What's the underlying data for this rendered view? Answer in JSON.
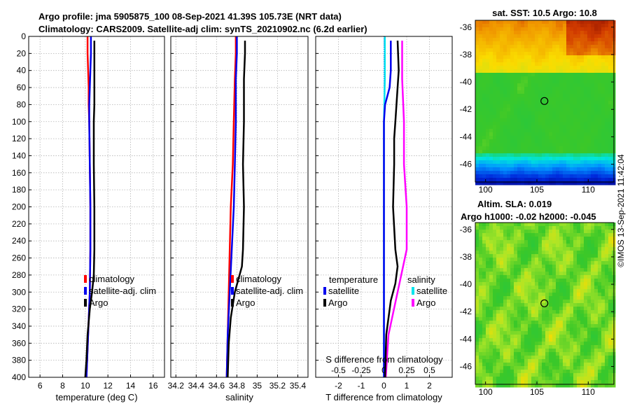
{
  "title": {
    "line1": "Argo profile: jma 5905875_100 08-Sep-2021 41.39S 105.73E (NRT data)",
    "line2": "Climatology: CARS2009. Satellite-adj clim: synTS_20210902.nc (6.2d earlier)"
  },
  "copyright": "©IMOS 13-Sep-2021 11:42:04",
  "colors": {
    "climatology": "#ff0000",
    "satellite_adj": "#0000ee",
    "argo": "#000000",
    "s_satellite": "#00e5ee",
    "s_argo": "#ff00ff",
    "zero_line": "#0000ff",
    "grid": "#b4b4b4"
  },
  "chart_data": [
    {
      "id": "temperature",
      "type": "line",
      "xlabel": "temperature (deg C)",
      "ylabel": "",
      "xlim": [
        5,
        17
      ],
      "ylim": [
        400,
        0
      ],
      "xticks": [
        6,
        8,
        10,
        12,
        14,
        16
      ],
      "yticks": [
        0,
        20,
        40,
        60,
        80,
        100,
        120,
        140,
        160,
        180,
        200,
        220,
        240,
        260,
        280,
        300,
        320,
        340,
        360,
        380,
        400
      ],
      "grid": true,
      "legend": [
        "climatology",
        "satellite-adj. clim",
        "Argo"
      ],
      "series": [
        {
          "name": "climatology",
          "depth": [
            0,
            20,
            40,
            60,
            80,
            100,
            150,
            200,
            250,
            300,
            350,
            400
          ],
          "values": [
            10.2,
            10.2,
            10.25,
            10.3,
            10.3,
            10.35,
            10.4,
            10.45,
            10.45,
            10.4,
            10.25,
            10.1
          ]
        },
        {
          "name": "satellite-adj. clim",
          "depth": [
            0,
            20,
            40,
            60,
            80,
            100,
            150,
            200,
            250,
            300,
            350,
            400
          ],
          "values": [
            10.5,
            10.5,
            10.45,
            10.4,
            10.35,
            10.35,
            10.4,
            10.45,
            10.45,
            10.4,
            10.25,
            10.1
          ]
        },
        {
          "name": "Argo",
          "depth": [
            5,
            20,
            40,
            60,
            80,
            100,
            150,
            200,
            250,
            280,
            300,
            320,
            350,
            380,
            400
          ],
          "values": [
            10.8,
            10.8,
            10.8,
            10.8,
            10.8,
            10.75,
            10.75,
            10.8,
            10.8,
            10.75,
            10.6,
            10.4,
            10.2,
            10.1,
            10.0
          ]
        }
      ]
    },
    {
      "id": "salinity",
      "type": "line",
      "xlabel": "salinity",
      "ylabel": "",
      "xlim": [
        34.15,
        35.5
      ],
      "ylim": [
        400,
        0
      ],
      "xticks": [
        34.2,
        34.4,
        34.6,
        34.8,
        35,
        35.2,
        35.4
      ],
      "xticklabels": [
        "34.2",
        "34.4",
        "34.6",
        "34.8",
        "35",
        "35.2",
        "35.4"
      ],
      "grid": true,
      "legend": [
        "climatology",
        "satellite-adj. clim",
        "Argo"
      ],
      "series": [
        {
          "name": "climatology",
          "depth": [
            0,
            20,
            50,
            100,
            150,
            200,
            250,
            300,
            350,
            400
          ],
          "values": [
            34.79,
            34.79,
            34.78,
            34.77,
            34.76,
            34.74,
            34.73,
            34.72,
            34.71,
            34.7
          ]
        },
        {
          "name": "satellite-adj. clim",
          "depth": [
            0,
            20,
            50,
            100,
            150,
            200,
            250,
            300,
            350,
            400
          ],
          "values": [
            34.8,
            34.8,
            34.79,
            34.79,
            34.78,
            34.77,
            34.75,
            34.73,
            34.71,
            34.7
          ]
        },
        {
          "name": "Argo",
          "depth": [
            5,
            20,
            50,
            100,
            150,
            200,
            250,
            270,
            300,
            330,
            360,
            400
          ],
          "values": [
            34.88,
            34.88,
            34.87,
            34.87,
            34.86,
            34.87,
            34.86,
            34.85,
            34.78,
            34.74,
            34.72,
            34.71
          ]
        }
      ]
    },
    {
      "id": "difference",
      "type": "line",
      "xlabel": "T difference from climatology",
      "xlabel_top": "S difference from climatology",
      "xlim": [
        -3,
        3
      ],
      "ylim": [
        400,
        0
      ],
      "xticks": [
        -2,
        -1,
        0,
        1,
        2
      ],
      "s_xticks": [
        -0.5,
        -0.25,
        0,
        0.25,
        0.5
      ],
      "s_xticklabels": [
        "-0.5",
        "-0.25",
        "0",
        "0.25",
        "0.5"
      ],
      "grid": true,
      "legend_temperature_title": "temperature",
      "legend_salinity_title": "salinity",
      "legend_temperature": [
        "satellite",
        "Argo"
      ],
      "legend_salinity": [
        "satellite",
        "Argo"
      ],
      "series": [
        {
          "name": "temperature satellite",
          "depth": [
            5,
            40,
            60,
            80,
            100,
            120,
            150,
            200,
            300,
            400
          ],
          "values": [
            0.3,
            0.3,
            0.25,
            0.05,
            0.0,
            0.0,
            0.0,
            0.0,
            0.0,
            0.0
          ]
        },
        {
          "name": "temperature Argo",
          "depth": [
            5,
            40,
            60,
            80,
            100,
            120,
            150,
            200,
            250,
            270,
            290,
            310,
            350,
            400
          ],
          "values": [
            0.6,
            0.65,
            0.6,
            0.55,
            0.5,
            0.45,
            0.45,
            0.4,
            0.5,
            0.6,
            0.5,
            0.3,
            0.1,
            0.05
          ]
        },
        {
          "name": "salinity satellite",
          "depth": [
            0,
            50,
            100,
            200,
            300,
            400
          ],
          "values": [
            0.01,
            0.01,
            0.0,
            0.0,
            0.0,
            0.0
          ]
        },
        {
          "name": "salinity Argo",
          "depth": [
            5,
            50,
            100,
            150,
            200,
            250,
            300,
            350,
            400
          ],
          "values": [
            0.2,
            0.2,
            0.22,
            0.22,
            0.25,
            0.25,
            0.15,
            0.05,
            0.02
          ]
        }
      ]
    },
    {
      "id": "sst_map",
      "type": "heatmap",
      "title": "sat. SST: 10.5 Argo: 10.8",
      "xlim": [
        99,
        112.5
      ],
      "ylim": [
        -47.3,
        -35.5
      ],
      "xticks": [
        100,
        105,
        110
      ],
      "yticks": [
        -36,
        -38,
        -40,
        -42,
        -44,
        -46
      ],
      "marker": {
        "lon": 105.73,
        "lat": -41.39
      }
    },
    {
      "id": "sla_map",
      "type": "heatmap",
      "title_line1": "Altim. SLA: 0.019",
      "title_line2": "Argo h1000: -0.02 h2000: -0.045",
      "xlim": [
        99,
        112.5
      ],
      "ylim": [
        -47.3,
        -35.5
      ],
      "xticks": [
        100,
        105,
        110
      ],
      "yticks": [
        -36,
        -38,
        -40,
        -42,
        -44,
        -46
      ],
      "marker": {
        "lon": 105.73,
        "lat": -41.39
      }
    }
  ]
}
